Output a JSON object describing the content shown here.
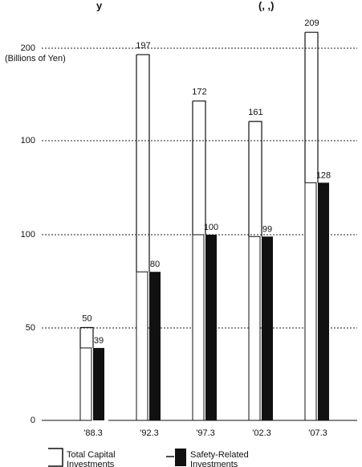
{
  "header_fragments": {
    "left": "y",
    "right": "(, ,)"
  },
  "chart_data": {
    "type": "bar",
    "unit_label": "(Billions of Yen)",
    "categories": [
      "'88.3",
      "'92.3",
      "'97.3",
      "'02.3",
      "'07.3"
    ],
    "series": [
      {
        "name": "Total Capital Investments",
        "values": [
          50,
          197,
          172,
          161,
          209
        ],
        "labels": [
          "50",
          "197",
          "172",
          "161",
          "209"
        ],
        "style": "outline"
      },
      {
        "name": "Safety-Related Investments",
        "values": [
          39,
          80,
          100,
          99,
          128
        ],
        "labels": [
          "39",
          "80",
          "100",
          "99",
          "128"
        ],
        "style": "dark",
        "color": "#111111"
      }
    ],
    "y_ticks": [
      "0",
      "50",
      "100",
      "100",
      "200"
    ],
    "legend_placement": "bottom-left",
    "grid": true
  }
}
